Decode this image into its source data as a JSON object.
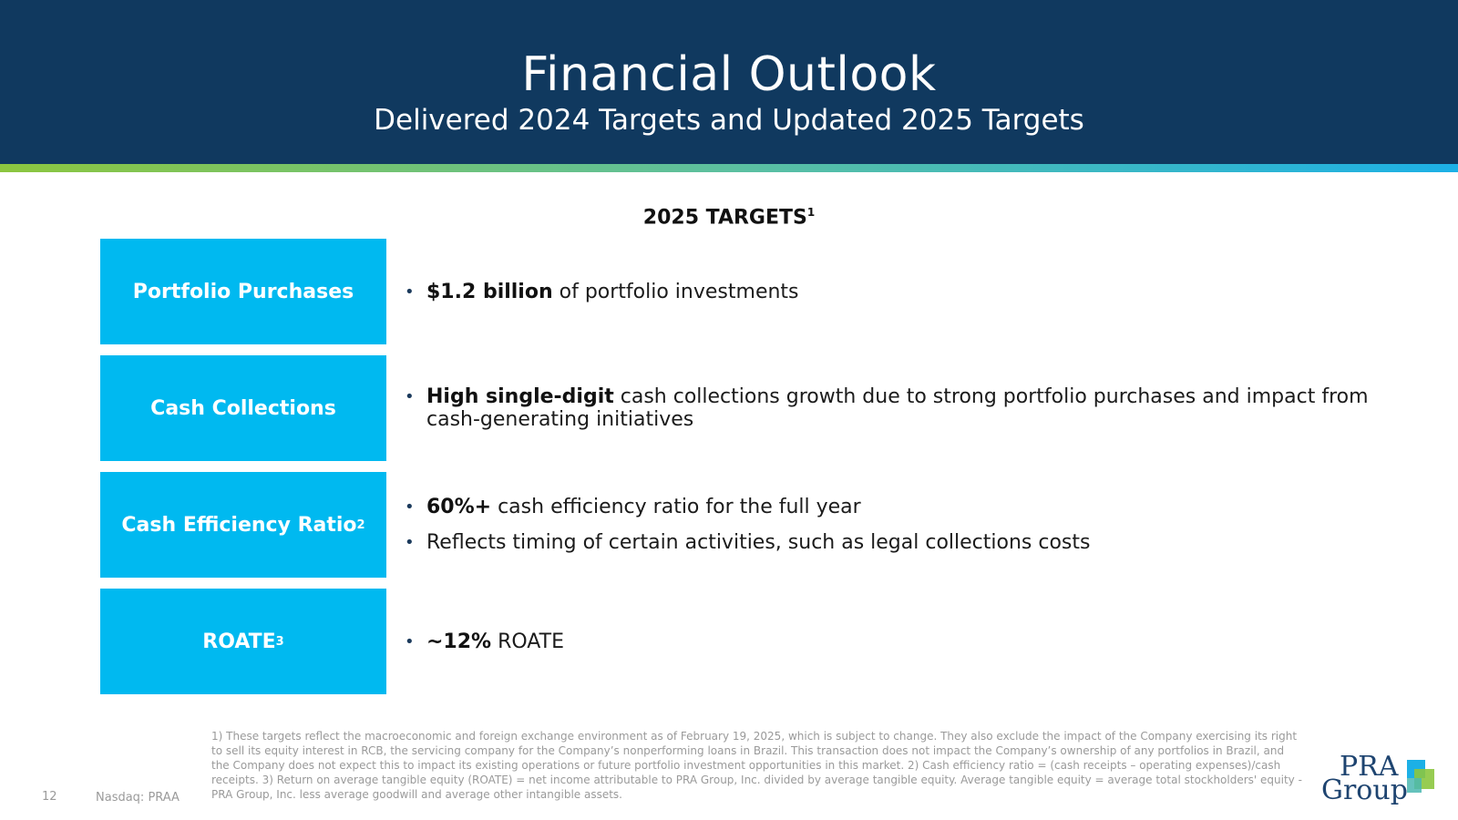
{
  "header": {
    "title": "Financial Outlook",
    "subtitle": "Delivered 2024 Targets and Updated 2025 Targets"
  },
  "section": {
    "title": "2025 TARGETS",
    "title_sup": "1"
  },
  "targets": [
    {
      "label": "Portfolio Purchases",
      "sup": "",
      "bullets": [
        {
          "bold": "$1.2 billion",
          "text": " of portfolio investments"
        }
      ]
    },
    {
      "label": "Cash Collections",
      "sup": "",
      "bullets": [
        {
          "bold": "High single-digit",
          "text": " cash collections growth due to strong portfolio purchases and impact from cash-generating initiatives"
        }
      ]
    },
    {
      "label": "Cash Efficiency Ratio",
      "sup": "2",
      "bullets": [
        {
          "bold": "60%+",
          "text": " cash efficiency ratio for the full year"
        },
        {
          "bold": "",
          "text": "Reflects timing of certain activities, such as legal collections costs"
        }
      ]
    },
    {
      "label": "ROATE",
      "sup": "3",
      "bullets": [
        {
          "bold": "~12%",
          "text": " ROATE"
        }
      ]
    }
  ],
  "footnote": "1) These targets reflect the macroeconomic and foreign exchange environment as of February 19, 2025, which is subject to change. They also exclude the impact of the Company exercising its right to sell its equity interest in RCB, the servicing company for the Company’s nonperforming loans in Brazil. This transaction does not impact the Company’s ownership of any portfolios in Brazil, and the Company does not expect this to impact its existing operations or future portfolio investment opportunities in this market. 2) Cash efficiency ratio = (cash receipts – operating expenses)/cash receipts. 3) Return on average tangible equity (ROATE) = net income attributable to PRA Group, Inc. divided by average tangible equity. Average tangible equity = average total stockholders' equity - PRA Group, Inc. less average goodwill and average other intangible assets.",
  "footer": {
    "page_number": "12",
    "ticker": "Nasdaq: PRAA"
  },
  "logo": {
    "line1": "PRA",
    "line2": "Group"
  },
  "colors": {
    "header_bg": "#10395f",
    "box_bg": "#00b9f0",
    "stripe_start": "#8cc63f",
    "stripe_end": "#1cb0e6"
  }
}
